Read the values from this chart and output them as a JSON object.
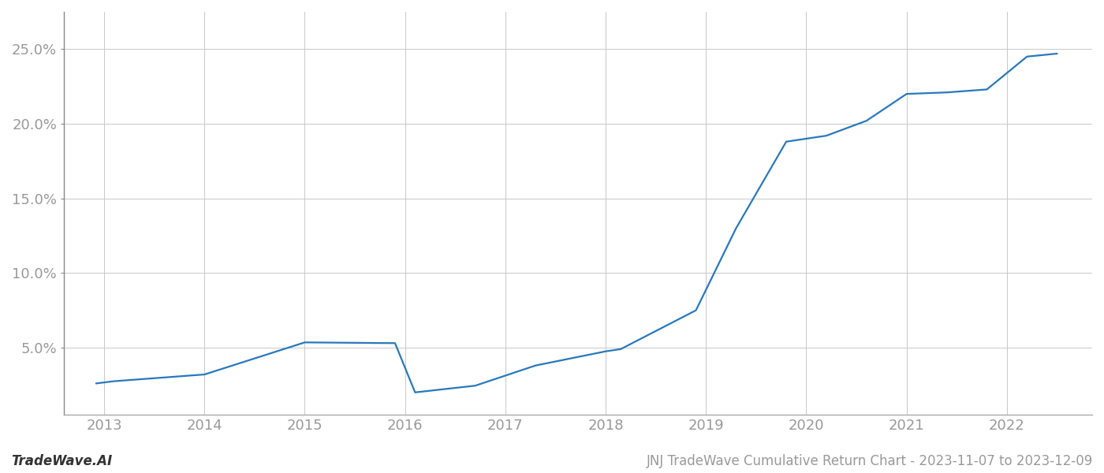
{
  "x_values": [
    2012.92,
    2013.1,
    2014.0,
    2015.0,
    2015.9,
    2016.1,
    2016.7,
    2017.3,
    2018.0,
    2018.15,
    2018.9,
    2019.3,
    2019.8,
    2020.2,
    2020.6,
    2021.0,
    2021.4,
    2021.8,
    2022.2,
    2022.5
  ],
  "y_values": [
    2.6,
    2.75,
    3.2,
    5.35,
    5.3,
    2.0,
    2.45,
    3.8,
    4.75,
    4.9,
    7.5,
    13.0,
    18.8,
    19.2,
    20.2,
    22.0,
    22.1,
    22.3,
    24.5,
    24.7
  ],
  "line_color": "#2878bd",
  "background_color": "#ffffff",
  "grid_color": "#c8c8c8",
  "ylim": [
    0.5,
    27.5
  ],
  "yticks": [
    5.0,
    10.0,
    15.0,
    20.0,
    25.0
  ],
  "xlim": [
    2012.6,
    2022.85
  ],
  "xticks": [
    2013,
    2014,
    2015,
    2016,
    2017,
    2018,
    2019,
    2020,
    2021,
    2022
  ],
  "tick_label_fontsize": 13,
  "footer_left": "TradeWave.AI",
  "footer_right": "JNJ TradeWave Cumulative Return Chart - 2023-11-07 to 2023-12-09",
  "footer_fontsize": 12,
  "tick_label_color": "#999999",
  "footer_left_color": "#333333",
  "spine_color": "#aaaaaa",
  "left_spine_color": "#888888",
  "line_width": 1.6
}
